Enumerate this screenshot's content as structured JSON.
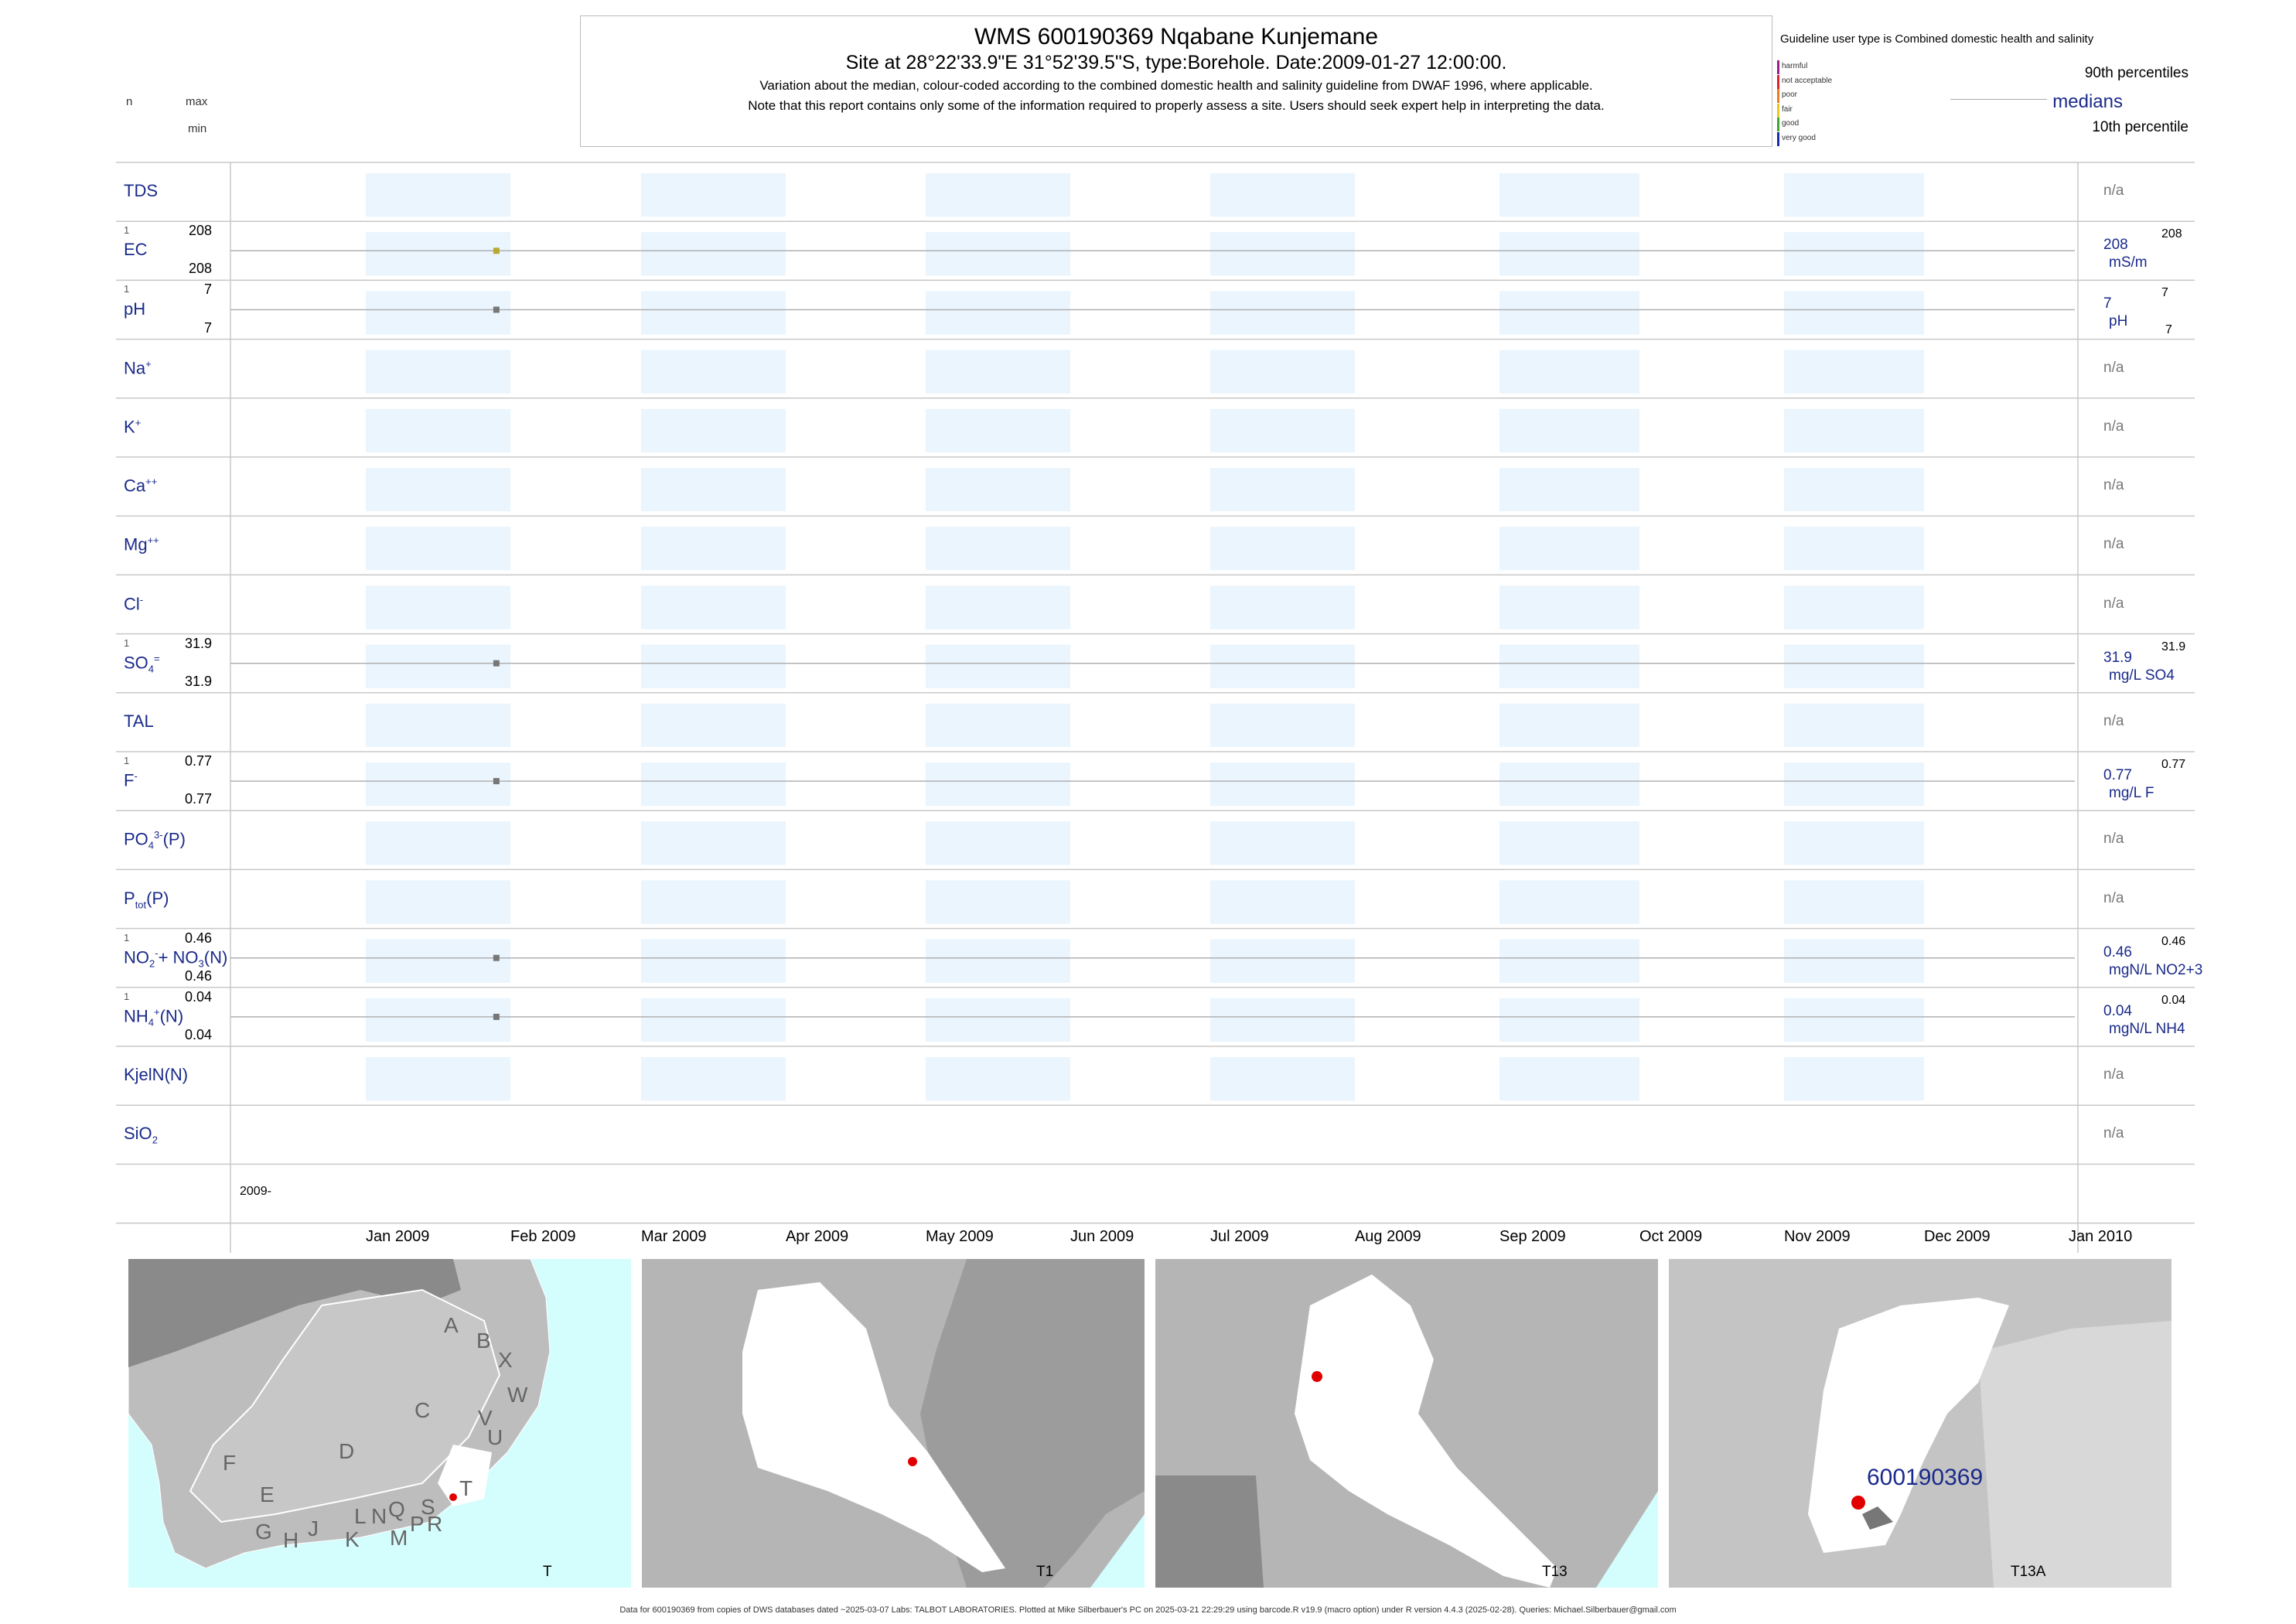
{
  "header": {
    "title": "WMS 600190369  Nqabane Kunjemane",
    "subtitle": "Site at 28°22'33.9\"E 31°52'39.5\"S, type:Borehole. Date:2009-01-27 12:00:00.",
    "note1": "Variation about the median,  colour-coded according to the combined domestic health and salinity guideline from DWAF 1996, where applicable.",
    "note2": "Note that this report contains only some of the information required to properly assess a site. Users should seek expert help in interpreting the data.",
    "col_n": "n",
    "col_max": "max",
    "col_min": "min"
  },
  "legend": {
    "guideline": "Guideline user type is Combined domestic health and salinity",
    "categories": [
      {
        "label": "harmful",
        "color": "#9b1b8a"
      },
      {
        "label": "not acceptable",
        "color": "#e0202a"
      },
      {
        "label": "poor",
        "color": "#f07a1a"
      },
      {
        "label": "fair",
        "color": "#e8c81a"
      },
      {
        "label": "good",
        "color": "#3aa82a"
      },
      {
        "label": "very good",
        "color": "#1a2aa8"
      }
    ],
    "p90": "90th percentiles",
    "median": "medians",
    "p10": "10th percentile"
  },
  "chart_data": {
    "type": "scatter",
    "x_axis": {
      "start": "2008-12-01",
      "end": "2010-01-01",
      "year_label": "2009-",
      "ticks": [
        "Jan 2009",
        "Feb 2009",
        "Mar 2009",
        "Apr 2009",
        "May 2009",
        "Jun 2009",
        "Jul 2009",
        "Aug 2009",
        "Sep 2009",
        "Oct 2009",
        "Nov 2009",
        "Dec 2009",
        "Jan 2010"
      ]
    },
    "sample_date": "2009-01-27",
    "parameters": [
      {
        "key": "tds",
        "label": "TDS",
        "n": null,
        "max": null,
        "min": null,
        "value": null,
        "unit": null,
        "na": "n/a"
      },
      {
        "key": "ec",
        "label": "EC",
        "n": "1",
        "max": "208",
        "min": "208",
        "value": "208",
        "p90": "208",
        "unit": "mS/m",
        "color": "#b8a830"
      },
      {
        "key": "ph",
        "label": "pH",
        "n": "1",
        "max": "7",
        "min": "7",
        "value": "7",
        "p90": "7",
        "p10": "7",
        "unit": "pH",
        "color": "#777777"
      },
      {
        "key": "na",
        "label": "Na",
        "sup": "+",
        "n": null,
        "max": null,
        "min": null,
        "value": null,
        "unit": null,
        "na": "n/a"
      },
      {
        "key": "k",
        "label": "K",
        "sup": "+",
        "n": null,
        "max": null,
        "min": null,
        "value": null,
        "unit": null,
        "na": "n/a"
      },
      {
        "key": "ca",
        "label": "Ca",
        "sup": "++",
        "n": null,
        "max": null,
        "min": null,
        "value": null,
        "unit": null,
        "na": "n/a"
      },
      {
        "key": "mg",
        "label": "Mg",
        "sup": "++",
        "n": null,
        "max": null,
        "min": null,
        "value": null,
        "unit": null,
        "na": "n/a"
      },
      {
        "key": "cl",
        "label": "Cl",
        "sup": "-",
        "n": null,
        "max": null,
        "min": null,
        "value": null,
        "unit": null,
        "na": "n/a"
      },
      {
        "key": "so4",
        "label": "SO",
        "sub": "4",
        "sup": "=",
        "n": "1",
        "max": "31.9",
        "min": "31.9",
        "value": "31.9",
        "p90": "31.9",
        "unit": "mg/L SO4",
        "color": "#777777"
      },
      {
        "key": "tal",
        "label": "TAL",
        "n": null,
        "max": null,
        "min": null,
        "value": null,
        "unit": null,
        "na": "n/a"
      },
      {
        "key": "f",
        "label": "F",
        "sup": "-",
        "n": "1",
        "max": "0.77",
        "min": "0.77",
        "value": "0.77",
        "p90": "0.77",
        "unit": "mg/L F",
        "color": "#777777"
      },
      {
        "key": "po4",
        "label": "PO",
        "sub": "4",
        "sup": "3-",
        "suffix": "(P)",
        "n": null,
        "max": null,
        "min": null,
        "value": null,
        "unit": null,
        "na": "n/a"
      },
      {
        "key": "ptot",
        "label": "P",
        "sub": "tot",
        "suffix": "(P)",
        "n": null,
        "max": null,
        "min": null,
        "value": null,
        "unit": null,
        "na": "n/a"
      },
      {
        "key": "no23",
        "label": "NO",
        "sub": "2",
        "sup": "-",
        "suffix": "+ NO",
        "sub2": "3",
        "suffix2": "(N)",
        "n": "1",
        "max": "0.46",
        "min": "0.46",
        "value": "0.46",
        "p90": "0.46",
        "unit": "mgN/L NO2+3",
        "color": "#777777"
      },
      {
        "key": "nh4",
        "label": "NH",
        "sub": "4",
        "sup": "+",
        "suffix": "(N)",
        "n": "1",
        "max": "0.04",
        "min": "0.04",
        "value": "0.04",
        "p90": "0.04",
        "unit": "mgN/L NH4",
        "color": "#777777"
      },
      {
        "key": "kjel",
        "label": "KjelN(N)",
        "n": null,
        "max": null,
        "min": null,
        "value": null,
        "unit": null,
        "na": "n/a"
      },
      {
        "key": "sio2",
        "label": "SiO",
        "sub": "2",
        "n": null,
        "max": null,
        "min": null,
        "value": null,
        "unit": null,
        "na": "n/a"
      }
    ]
  },
  "maps": {
    "panel1": {
      "regions": [
        "A",
        "B",
        "X",
        "W",
        "C",
        "V",
        "U",
        "D",
        "T",
        "F",
        "E",
        "S",
        "R",
        "Q",
        "N",
        "L",
        "P",
        "M",
        "J",
        "K",
        "H",
        "G"
      ],
      "caption": "T"
    },
    "panel2": {
      "caption": "T1"
    },
    "panel3": {
      "caption": "T13"
    },
    "panel4": {
      "site": "600190369",
      "caption": "T13A"
    }
  },
  "footer": "Data for 600190369 from copies of DWS databases dated ~2025-03-07 Labs: TALBOT LABORATORIES. Plotted at Mike Silberbauer's PC on 2025-03-21 22:29:29 using barcode.R v19.9 (macro option) under R version 4.4.3 (2025-02-28). Queries: Michael.Silberbauer@gmail.com"
}
